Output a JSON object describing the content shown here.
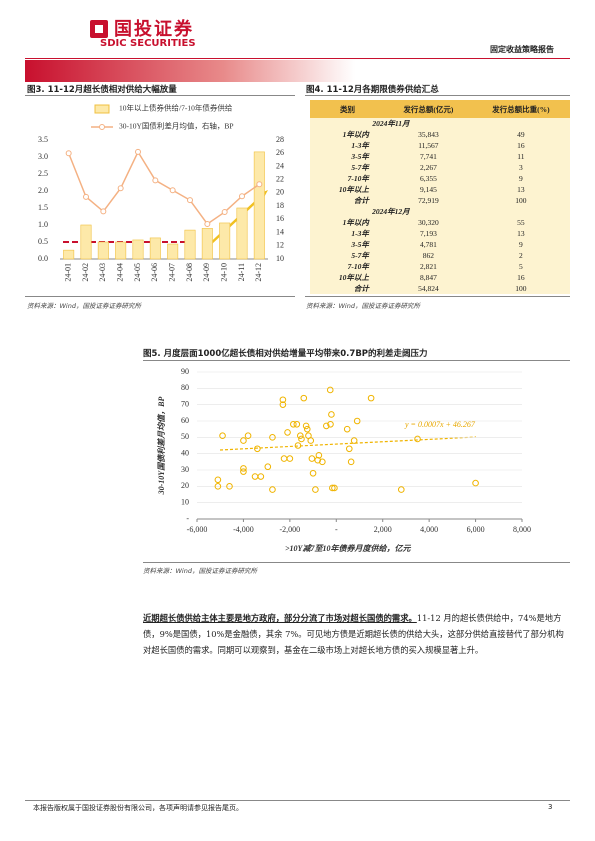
{
  "header": {
    "logo_cn": "国投证券",
    "logo_en": "SDIC SECURITIES",
    "report_type": "固定收益策略报告"
  },
  "chart_data": [
    {
      "type": "bar",
      "title": "图3. 11-12月超长债相对供给大幅放量",
      "categories": [
        "24-01",
        "24-02",
        "24-03",
        "24-04",
        "24-05",
        "24-06",
        "24-07",
        "24-08",
        "24-09",
        "24-10",
        "24-11",
        "24-12"
      ],
      "series": [
        {
          "name": "10年以上债券供给/7-10年债券供给",
          "type": "bar",
          "color": "#fde9a9",
          "values": [
            0.26,
            1.0,
            0.5,
            0.5,
            0.56,
            0.62,
            0.44,
            0.85,
            0.9,
            1.06,
            1.5,
            3.15
          ]
        },
        {
          "name": "30-10Y国债利差月均值，右轴，BP",
          "type": "line",
          "axis": "y2",
          "color": "#f4b183",
          "values": [
            26,
            19.4,
            17.2,
            20.7,
            26.2,
            21.9,
            20.4,
            18.9,
            15.3,
            17.1,
            19.5,
            21.3
          ]
        }
      ],
      "ylim": [
        0,
        3.5
      ],
      "yticks": [
        {
          "value": 0,
          "label": "0.0"
        },
        0.5,
        {
          "value": 1,
          "label": "1.0"
        },
        1.5,
        {
          "value": 2,
          "label": "2.0"
        },
        2.5,
        {
          "value": 3,
          "label": "3.0"
        },
        3.5
      ],
      "y2lim": [
        10,
        28
      ],
      "y2ticks": [
        10,
        12,
        14,
        16,
        18,
        20,
        22,
        24,
        26,
        28
      ],
      "source": "资料来源：Wind，国投证券证券研究所"
    },
    {
      "type": "scatter",
      "title": "图5. 月度层面1000亿超长债相对供给增量平均带来0.7BP的利差走阔压力",
      "color": "#f0b400",
      "x": [
        -4900,
        -5100,
        -5100,
        -4600,
        -4000,
        -4000,
        -4000,
        -3800,
        -3500,
        -3400,
        -3250,
        -2950,
        -2750,
        -2750,
        -2300,
        -2300,
        -2250,
        -2100,
        -2000,
        -1850,
        -1700,
        -1650,
        -1550,
        -1500,
        -1400,
        -1300,
        -1250,
        -1200,
        -1100,
        -1050,
        -900,
        -1000,
        -800,
        -750,
        -600,
        -430,
        -250,
        -260,
        -210,
        -170,
        -80,
        470,
        560,
        640,
        770,
        900,
        1500,
        2800,
        3500,
        6000
      ],
      "y": [
        51,
        24,
        20,
        20,
        48,
        31,
        29,
        51,
        26,
        43,
        26,
        32,
        18,
        50,
        73,
        70,
        37,
        53,
        37,
        58,
        58,
        45,
        51,
        49,
        74,
        57,
        55,
        51,
        48,
        37,
        18,
        28,
        36,
        39,
        35,
        57,
        58,
        79,
        64,
        19,
        19,
        55,
        43,
        35,
        48,
        60,
        74,
        18,
        49,
        22
      ],
      "xlim": [
        -6000,
        8000
      ],
      "xticks": [
        {
          "value": -6000,
          "label": "-6,000"
        },
        {
          "value": -4000,
          "label": "-4,000"
        },
        {
          "value": -2000,
          "label": "-2,000"
        },
        {
          "value": 0,
          "label": "-"
        },
        {
          "value": 2000,
          "label": "2,000"
        },
        {
          "value": 4000,
          "label": "4,000"
        },
        {
          "value": 6000,
          "label": "6,000"
        },
        {
          "value": 8000,
          "label": "8,000"
        }
      ],
      "ylim": [
        0,
        90
      ],
      "yticks": [
        {
          "value": 0,
          "label": "-"
        },
        10,
        20,
        30,
        40,
        50,
        60,
        70,
        80,
        90
      ],
      "grid": true,
      "x_label": ">10Y减7至10年债券月度供给，亿元",
      "y_label": "30-10Y国债利差月均值，BP",
      "annotation": "y = 0.0007x + 46.267",
      "source": "资料来源：Wind，国投证券证券研究所"
    }
  ],
  "table": {
    "title": "图4. 11-12月各期限债券供给汇总",
    "header": [
      "类别",
      "发行总额(亿元)",
      "发行总额比重(%)"
    ],
    "sections": [
      {
        "label": "2024年11月",
        "rows": [
          [
            "1年以内",
            "35,843",
            "49"
          ],
          [
            "1-3年",
            "11,567",
            "16"
          ],
          [
            "3-5年",
            "7,741",
            "11"
          ],
          [
            "5-7年",
            "2,267",
            "3"
          ],
          [
            "7-10年",
            "6,355",
            "9"
          ],
          [
            "10年以上",
            "9,145",
            "13"
          ],
          [
            "合计",
            "72,919",
            "100"
          ]
        ]
      },
      {
        "label": "2024年12月",
        "rows": [
          [
            "1年以内",
            "30,320",
            "55"
          ],
          [
            "1-3年",
            "7,193",
            "13"
          ],
          [
            "3-5年",
            "4,781",
            "9"
          ],
          [
            "5-7年",
            "862",
            "2"
          ],
          [
            "7-10年",
            "2,821",
            "5"
          ],
          [
            "10年以上",
            "8,847",
            "16"
          ],
          [
            "合计",
            "54,824",
            "100"
          ]
        ]
      }
    ],
    "source": "资料来源：Wind，国投证券证券研究所"
  },
  "body": {
    "lead": "近期超长债供给主体主要是地方政府，部分分流了市场对超长国债的需求。",
    "text": "11-12 月的超长债供给中，74%是地方债，9%是国债，10%是金融债，其余 7%。可见地方债是近期超长债的供给大头，这部分供给直接替代了部分机构对超长国债的需求。同期可以观察到，基金在二级市场上对超长地方债的买入规模显著上升。"
  },
  "footer": {
    "disclaimer": "本报告版权属于国投证券股份有限公司，各项声明请参见报告尾页。",
    "page": "3"
  }
}
